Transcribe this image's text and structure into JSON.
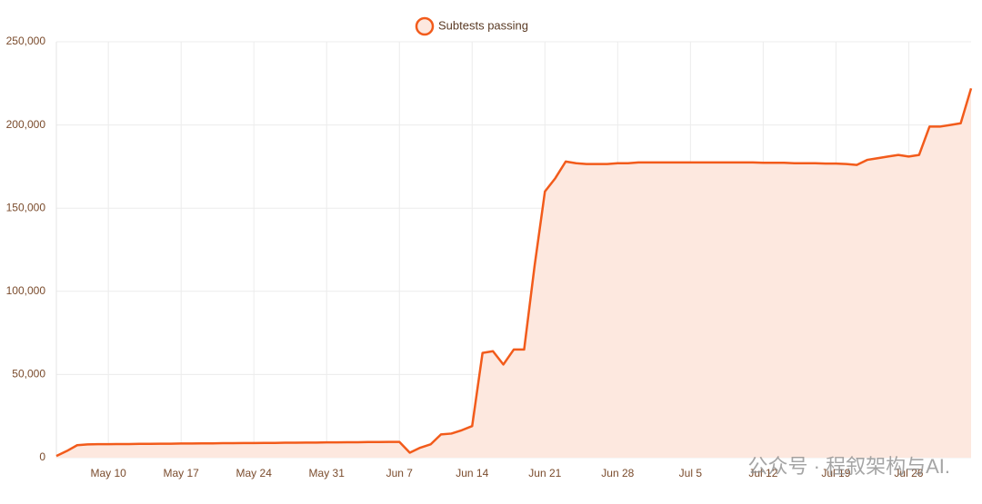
{
  "chart_data": {
    "type": "area",
    "legend": "Subtests passing",
    "watermark": "公众号 · 程叙架构与AI.",
    "categories": [
      null,
      null,
      null,
      null,
      null,
      "May 10",
      null,
      null,
      null,
      null,
      null,
      null,
      "May 17",
      null,
      null,
      null,
      null,
      null,
      null,
      "May 24",
      null,
      null,
      null,
      null,
      null,
      null,
      "May 31",
      null,
      null,
      null,
      null,
      null,
      null,
      "Jun 7",
      null,
      null,
      null,
      null,
      null,
      null,
      "Jun 14",
      null,
      null,
      null,
      null,
      null,
      null,
      "Jun 21",
      null,
      null,
      null,
      null,
      null,
      null,
      "Jun 28",
      null,
      null,
      null,
      null,
      null,
      null,
      "Jul 5",
      null,
      null,
      null,
      null,
      null,
      null,
      "Jul 12",
      null,
      null,
      null,
      null,
      null,
      null,
      "Jul 19",
      null,
      null,
      null,
      null,
      null,
      null,
      "Jul 26",
      null,
      null,
      null,
      null,
      null,
      null
    ],
    "values": [
      1000,
      4000,
      7500,
      8000,
      8100,
      8100,
      8200,
      8200,
      8300,
      8300,
      8400,
      8400,
      8500,
      8500,
      8600,
      8600,
      8700,
      8700,
      8800,
      8800,
      8900,
      8900,
      9000,
      9000,
      9100,
      9100,
      9200,
      9200,
      9300,
      9300,
      9400,
      9400,
      9500,
      9500,
      3000,
      6000,
      8000,
      14000,
      14500,
      16500,
      19000,
      63000,
      64000,
      56000,
      65000,
      65000,
      115000,
      160000,
      168000,
      178000,
      177000,
      176500,
      176500,
      176500,
      177000,
      177000,
      177500,
      177500,
      177500,
      177500,
      177500,
      177500,
      177500,
      177500,
      177500,
      177500,
      177500,
      177500,
      177300,
      177300,
      177300,
      177000,
      177000,
      177000,
      176800,
      176800,
      176500,
      176000,
      179000,
      180000,
      181000,
      182000,
      181000,
      182000,
      199000,
      199000,
      200000,
      201000,
      222000
    ],
    "color": "#f25b1b",
    "fill": "#fde8df",
    "ylim": [
      0,
      250000
    ],
    "yticks": [
      0,
      {
        "value": 50000,
        "label": "50,000"
      },
      {
        "value": 100000,
        "label": "100,000"
      },
      {
        "value": 150000,
        "label": "150,000"
      },
      {
        "value": 200000,
        "label": "200,000"
      },
      {
        "value": 250000,
        "label": "250,000"
      }
    ],
    "grid": true
  }
}
